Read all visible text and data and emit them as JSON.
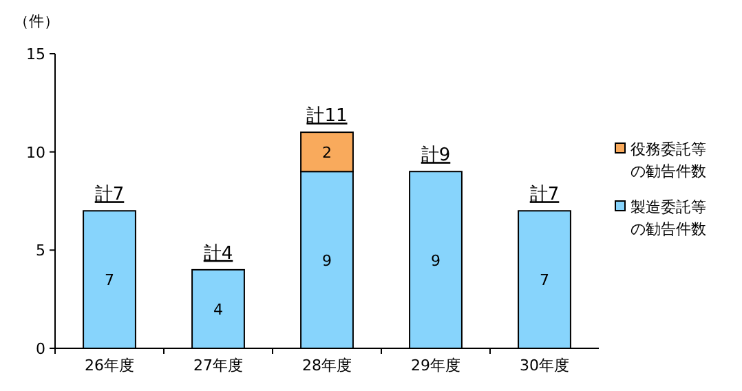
{
  "chart_data": {
    "type": "bar",
    "stacked": true,
    "ylabel": "（件）",
    "categories": [
      "26年度",
      "27年度",
      "28年度",
      "29年度",
      "30年度"
    ],
    "series": [
      {
        "name": "製造委託等の勧告件数",
        "color": "#87d4fc",
        "values": [
          7,
          4,
          9,
          9,
          7
        ]
      },
      {
        "name": "役務委託等の勧告件数",
        "color": "#f9aa5c",
        "values": [
          null,
          null,
          2,
          null,
          null
        ]
      }
    ],
    "ylim": [
      0,
      15
    ],
    "yticks": [
      0,
      5,
      10,
      15
    ],
    "data_labels": true,
    "totals": [
      "計7",
      "計4",
      "計11",
      "計9",
      "計7"
    ],
    "legend": "right",
    "grid": false
  }
}
